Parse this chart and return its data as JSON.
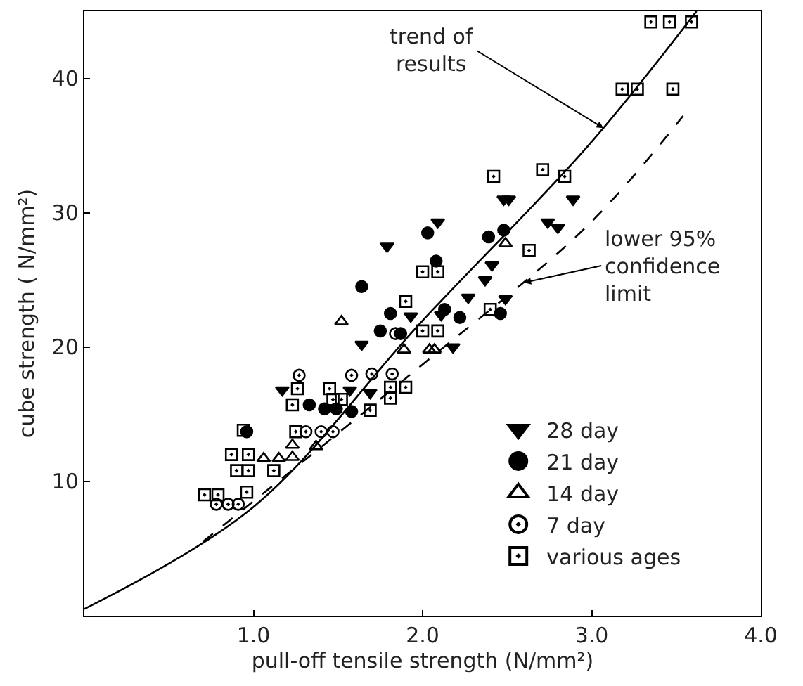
{
  "chart_data": {
    "type": "scatter",
    "xlabel": "pull-off tensile strength (N/mm²)",
    "ylabel": "cube strength ( N/mm²)",
    "xlim": [
      0,
      4.0
    ],
    "ylim": [
      0,
      45
    ],
    "xticks": [
      {
        "value": 1,
        "label": "1.0"
      },
      {
        "value": 2,
        "label": "2.0"
      },
      {
        "value": 3,
        "label": "3.0"
      },
      {
        "value": 4,
        "label": "4.0"
      }
    ],
    "yticks": [
      10,
      20,
      30,
      40
    ],
    "legend": "bottom right",
    "annotations": [
      {
        "text": "trend of results",
        "x": 3.07,
        "y": 36.3
      },
      {
        "text": "lower 95% confidence limit",
        "x": 2.6,
        "y": 24.8
      }
    ],
    "series": [
      {
        "name": "28 day",
        "color": "#000000",
        "marker": "triangle-down",
        "x": [
          2.48,
          2.51,
          2.89,
          2.74,
          2.8,
          2.09,
          1.79,
          2.41,
          2.37,
          2.27,
          2.49,
          1.64,
          2.18,
          2.11,
          1.17,
          1.57,
          1.69,
          1.93
        ],
        "values": [
          31.0,
          31.0,
          31.0,
          29.3,
          28.9,
          29.3,
          27.5,
          26.1,
          25.0,
          23.7,
          23.6,
          20.2,
          20.0,
          22.4,
          16.8,
          16.8,
          16.6,
          22.3
        ]
      },
      {
        "name": "21 day",
        "color": "#000000",
        "marker": "circle",
        "x": [
          2.03,
          2.39,
          2.48,
          1.64,
          2.08,
          1.81,
          1.75,
          1.87,
          2.13,
          2.22,
          2.46,
          1.33,
          1.42,
          1.49,
          1.58,
          0.96
        ],
        "values": [
          28.5,
          28.2,
          28.7,
          24.5,
          26.4,
          22.5,
          21.2,
          21.0,
          22.8,
          22.2,
          22.5,
          15.7,
          15.4,
          15.4,
          15.2,
          13.7
        ]
      },
      {
        "name": "14 day",
        "color": "#000000",
        "marker": "triangle-up-open",
        "x": [
          1.52,
          1.89,
          2.04,
          2.07,
          1.06,
          1.15,
          1.23,
          1.23,
          1.37,
          2.49
        ],
        "values": [
          21.9,
          19.8,
          19.8,
          19.8,
          11.7,
          11.7,
          12.7,
          11.8,
          12.6,
          27.7
        ]
      },
      {
        "name": "7 day",
        "color": "#000000",
        "marker": "circle-open-dot",
        "x": [
          1.27,
          1.58,
          1.7,
          1.82,
          1.31,
          1.4,
          1.47,
          0.78,
          0.85,
          0.91,
          1.84
        ],
        "values": [
          17.9,
          17.9,
          18.0,
          18.0,
          13.7,
          13.7,
          13.7,
          8.3,
          8.3,
          8.3,
          21.0
        ]
      },
      {
        "name": "various ages",
        "color": "#000000",
        "marker": "square-open-dot",
        "x": [
          3.35,
          3.46,
          3.59,
          3.18,
          3.27,
          3.48,
          2.42,
          2.71,
          2.84,
          2.63,
          2.0,
          2.09,
          1.9,
          2.0,
          2.09,
          2.4,
          1.45,
          1.47,
          1.52,
          1.26,
          1.23,
          1.69,
          1.81,
          1.9,
          1.81,
          1.25,
          0.94,
          0.87,
          0.97,
          0.9,
          0.97,
          1.12,
          0.71,
          0.79,
          0.96
        ],
        "values": [
          44.2,
          44.2,
          44.2,
          39.2,
          39.2,
          39.2,
          32.7,
          33.2,
          32.7,
          27.2,
          25.6,
          25.6,
          23.4,
          21.2,
          21.2,
          22.8,
          16.9,
          16.1,
          16.1,
          16.9,
          15.7,
          15.3,
          17.0,
          17.0,
          16.2,
          13.7,
          13.8,
          12.0,
          12.0,
          10.8,
          10.8,
          10.8,
          9.0,
          9.0,
          9.2
        ]
      },
      {
        "type": "line",
        "color": "#000000",
        "marker": "none",
        "line_style": "solid",
        "x": [
          0,
          1.0,
          1.98,
          2.98,
          3.62
        ],
        "values": [
          0.5,
          8.1,
          21.7,
          35.0,
          45.0
        ]
      },
      {
        "type": "line",
        "color": "#000000",
        "marker": "none",
        "line_style": "dashed",
        "x": [
          0.7,
          1.98,
          2.98,
          3.54
        ],
        "values": [
          5.5,
          18.5,
          29.1,
          37.2
        ]
      }
    ]
  }
}
